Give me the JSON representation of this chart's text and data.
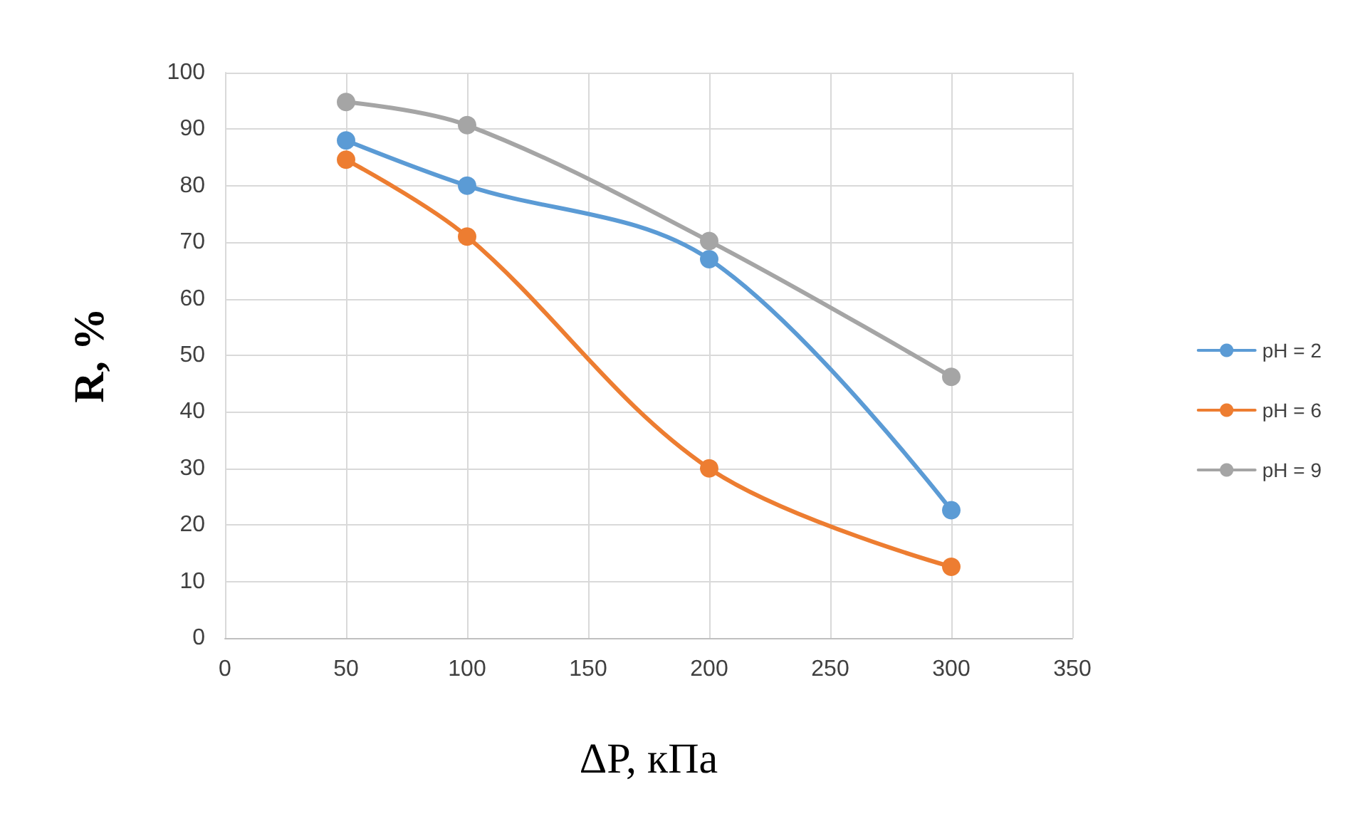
{
  "chart_data": {
    "type": "line",
    "xlabel": "ΔP, кПа",
    "ylabel": "R, %",
    "x": [
      50,
      100,
      200,
      300
    ],
    "series": [
      {
        "name": "pH = 2",
        "color": "#5b9bd5",
        "values": [
          88,
          80,
          67,
          22.6
        ]
      },
      {
        "name": "pH = 6",
        "color": "#ed7d31",
        "values": [
          84.6,
          71,
          30,
          12.6
        ]
      },
      {
        "name": "pH = 9",
        "color": "#a5a5a5",
        "values": [
          94.8,
          90.7,
          70.2,
          46.2
        ]
      }
    ],
    "xlim": [
      0,
      350
    ],
    "xticks": [
      0,
      50,
      100,
      150,
      200,
      250,
      300,
      350
    ],
    "ylim": [
      0,
      100
    ],
    "yticks": [
      0,
      10,
      20,
      30,
      40,
      50,
      60,
      70,
      80,
      90,
      100
    ],
    "grid": true,
    "legend": "right",
    "marker": "circle",
    "line_style": "solid"
  }
}
